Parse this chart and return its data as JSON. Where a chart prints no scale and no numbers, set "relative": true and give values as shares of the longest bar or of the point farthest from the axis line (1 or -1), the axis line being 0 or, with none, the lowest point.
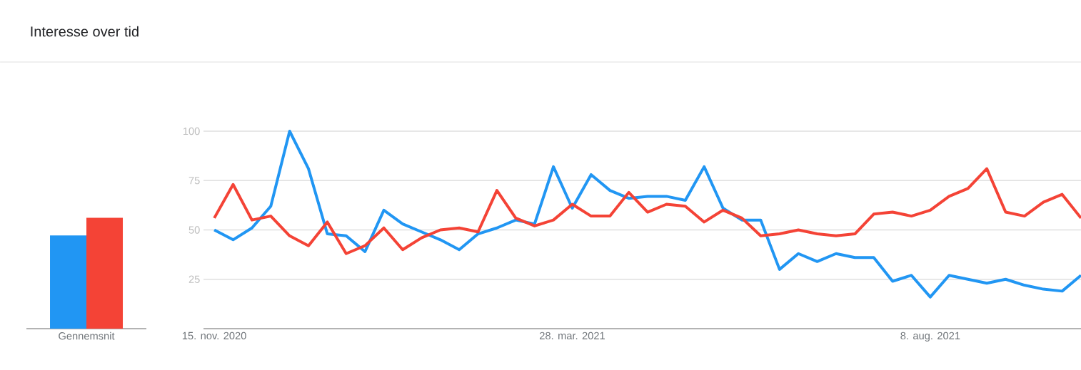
{
  "chart_data": [
    {
      "type": "bar",
      "title": "Interesse over tid",
      "categories": [
        "Gennemsnit"
      ],
      "relative": true,
      "tick_labels": "x",
      "series": [
        {
          "color": "#2196f3",
          "values": [
            0.84
          ]
        },
        {
          "color": "#f44336",
          "values": [
            1
          ]
        }
      ]
    },
    {
      "type": "line",
      "grid": "y",
      "xlim": [
        "2020-11-11",
        "2021-10-03"
      ],
      "ylim": [
        0,
        100
      ],
      "yticks": [
        25,
        50,
        75,
        100
      ],
      "xticks": [
        {
          "value": "2020-11-15",
          "label": "15. nov. 2020"
        },
        {
          "value": "2021-03-28",
          "label": "28. mar. 2021"
        },
        {
          "value": "2021-08-08",
          "label": "8. aug. 2021"
        }
      ],
      "x": [
        "2020-11-15",
        "2020-11-22",
        "2020-11-29",
        "2020-12-06",
        "2020-12-13",
        "2020-12-20",
        "2020-12-27",
        "2021-01-03",
        "2021-01-10",
        "2021-01-17",
        "2021-01-24",
        "2021-01-31",
        "2021-02-07",
        "2021-02-14",
        "2021-02-21",
        "2021-02-28",
        "2021-03-07",
        "2021-03-14",
        "2021-03-21",
        "2021-03-28",
        "2021-04-04",
        "2021-04-11",
        "2021-04-18",
        "2021-04-25",
        "2021-05-02",
        "2021-05-09",
        "2021-05-16",
        "2021-05-23",
        "2021-05-30",
        "2021-06-06",
        "2021-06-13",
        "2021-06-20",
        "2021-06-27",
        "2021-07-04",
        "2021-07-11",
        "2021-07-18",
        "2021-07-25",
        "2021-08-01",
        "2021-08-08",
        "2021-08-15",
        "2021-08-22",
        "2021-08-29",
        "2021-09-05",
        "2021-09-12",
        "2021-09-19",
        "2021-09-26",
        "2021-10-03"
      ],
      "series": [
        {
          "color": "#2196f3",
          "values": [
            50,
            45,
            51,
            62,
            100,
            81,
            48,
            47,
            39,
            60,
            53,
            49,
            45,
            40,
            48,
            51,
            55,
            53,
            82,
            61,
            78,
            70,
            66,
            67,
            67,
            65,
            82,
            61,
            55,
            55,
            30,
            38,
            34,
            38,
            36,
            36,
            24,
            27,
            16,
            27,
            25,
            23,
            25,
            22,
            20,
            19,
            27
          ]
        },
        {
          "color": "#f44336",
          "values": [
            56,
            73,
            55,
            57,
            47,
            42,
            54,
            38,
            42,
            51,
            40,
            46,
            50,
            51,
            49,
            70,
            56,
            52,
            55,
            63,
            57,
            57,
            69,
            59,
            63,
            62,
            54,
            60,
            56,
            47,
            48,
            50,
            48,
            47,
            48,
            58,
            59,
            57,
            60,
            67,
            71,
            81,
            59,
            57,
            64,
            68,
            56
          ]
        }
      ]
    }
  ]
}
